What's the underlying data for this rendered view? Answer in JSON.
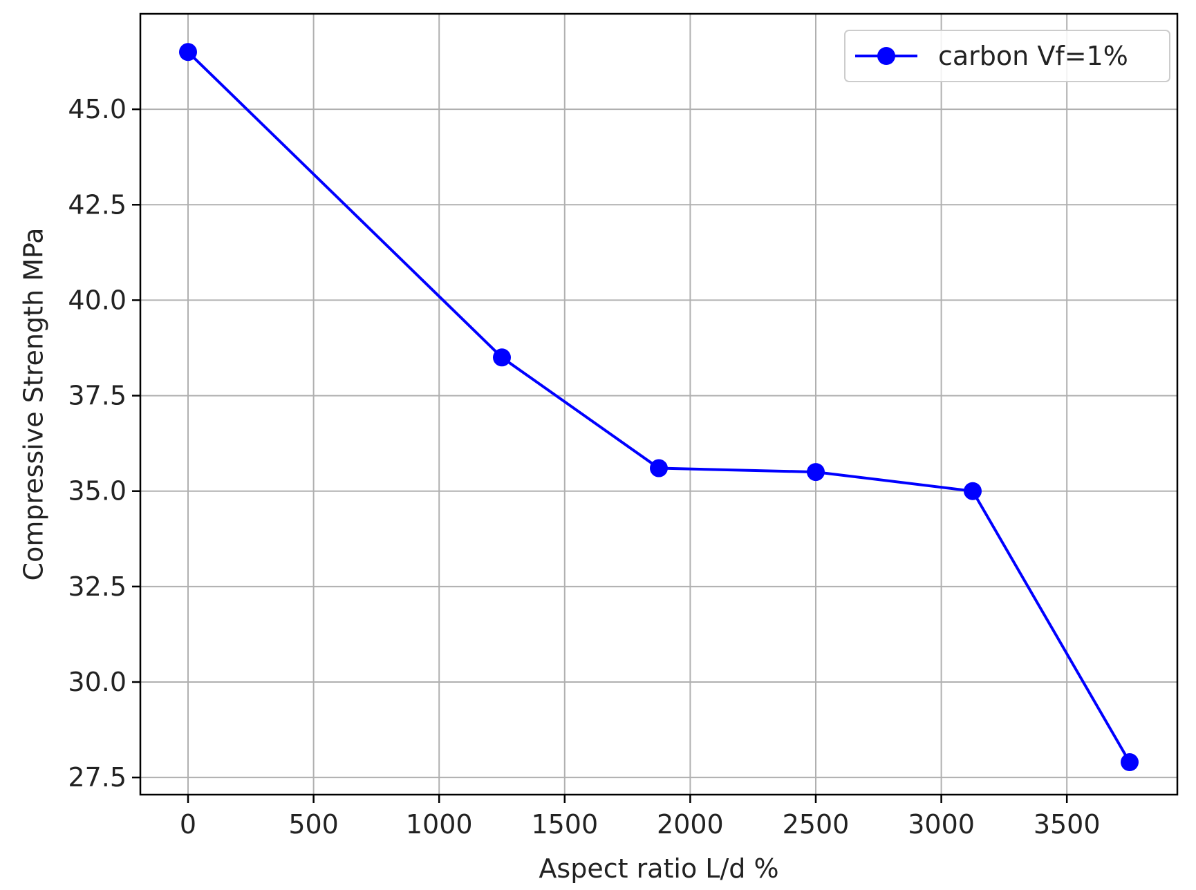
{
  "chart_data": {
    "type": "line",
    "title": "",
    "xlabel": "Aspect ratio L/d %",
    "ylabel": "Compressive Strength MPa",
    "xlim": [
      -190,
      3940
    ],
    "ylim": [
      27.05,
      47.5
    ],
    "x_ticks": [
      0,
      500,
      1000,
      1500,
      2000,
      2500,
      3000,
      3500
    ],
    "x_tick_labels": [
      "0",
      "500",
      "1000",
      "1500",
      "2000",
      "2500",
      "3000",
      "3500"
    ],
    "y_ticks": [
      27.5,
      30.0,
      32.5,
      35.0,
      37.5,
      40.0,
      42.5,
      45.0
    ],
    "y_tick_labels": [
      "27.5",
      "30.0",
      "32.5",
      "35.0",
      "37.5",
      "40.0",
      "42.5",
      "45.0"
    ],
    "grid": true,
    "legend_position": "top-right",
    "series": [
      {
        "name": "carbon Vf=1%",
        "color": "#0000ff",
        "marker": "circle",
        "x": [
          0,
          1250,
          1875,
          2500,
          3125,
          3750
        ],
        "y": [
          46.5,
          38.5,
          35.6,
          35.5,
          35.0,
          27.9
        ]
      }
    ]
  }
}
